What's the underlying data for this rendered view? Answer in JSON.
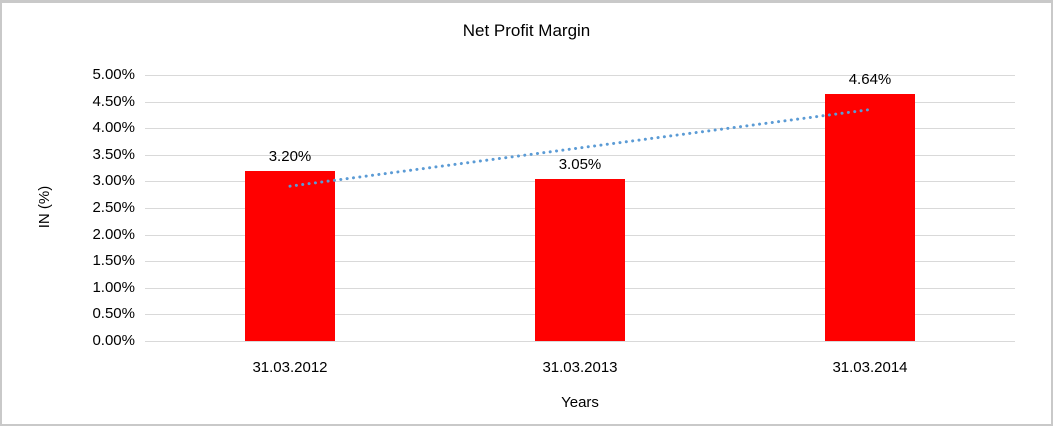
{
  "chart_data": {
    "type": "bar",
    "title": "Net Profit Margin",
    "xlabel": "Years",
    "ylabel": "IN (%)",
    "categories": [
      "31.03.2012",
      "31.03.2013",
      "31.03.2014"
    ],
    "values": [
      3.2,
      3.05,
      4.64
    ],
    "data_labels": [
      "3.20%",
      "3.05%",
      "4.64%"
    ],
    "ylim": [
      0,
      5
    ],
    "ytick_step": 0.5,
    "ytick_labels": [
      "0.00%",
      "0.50%",
      "1.00%",
      "1.50%",
      "2.00%",
      "2.50%",
      "3.00%",
      "3.50%",
      "4.00%",
      "4.50%",
      "5.00%"
    ],
    "grid": true,
    "legend": "none",
    "bar_color": "#FF0000",
    "gridline_color": "#D9D9D9",
    "text_color": "#000000",
    "trendline": {
      "type": "linear",
      "style": "dotted",
      "color": "#5B9BD5",
      "start": {
        "category_index": 0,
        "value": 2.91
      },
      "end": {
        "category_index": 2,
        "value": 4.35
      }
    }
  }
}
